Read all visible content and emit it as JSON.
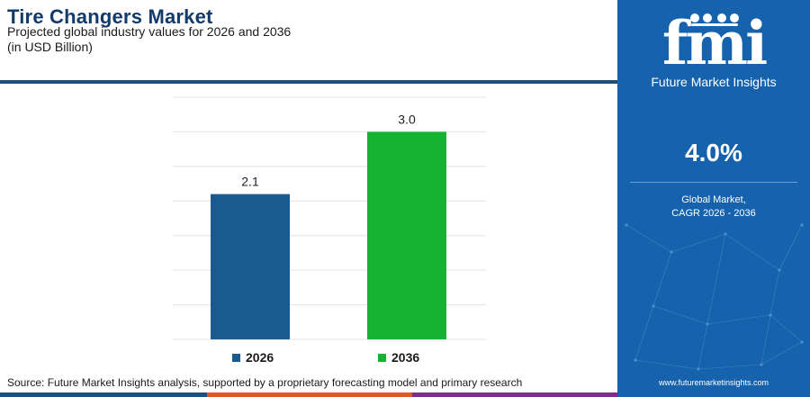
{
  "header": {
    "title": "Tire Changers Market",
    "subtitle": "Projected global industry values for 2026 and 2036",
    "unit": "(in USD Billion)"
  },
  "chart_data": {
    "type": "bar",
    "categories": [
      "2026",
      "2036"
    ],
    "values": [
      2.1,
      3.0
    ],
    "value_labels": [
      "2.1",
      "3.0"
    ],
    "colors": [
      "#1b5a8e",
      "#14b330"
    ],
    "ylim": [
      0,
      3.5
    ],
    "grid": true,
    "legend_placement": "bottom",
    "legend": [
      "2026",
      "2036"
    ]
  },
  "source": "Source: Future Market Insights analysis, supported by a proprietary forecasting model and primary research",
  "panel": {
    "logo_text": "fmi",
    "logo_subtitle": "Future Market Insights",
    "cagr_value": "4.0%",
    "cagr_label_line1": "Global Market,",
    "cagr_label_line2": "CAGR 2026 - 2036",
    "website": "www.futuremarketinsights.com",
    "background_color": "#1762ad"
  },
  "footer_colors": [
    "#1b4f80",
    "#e0572a",
    "#7a2f8f",
    "#1b4f80"
  ]
}
